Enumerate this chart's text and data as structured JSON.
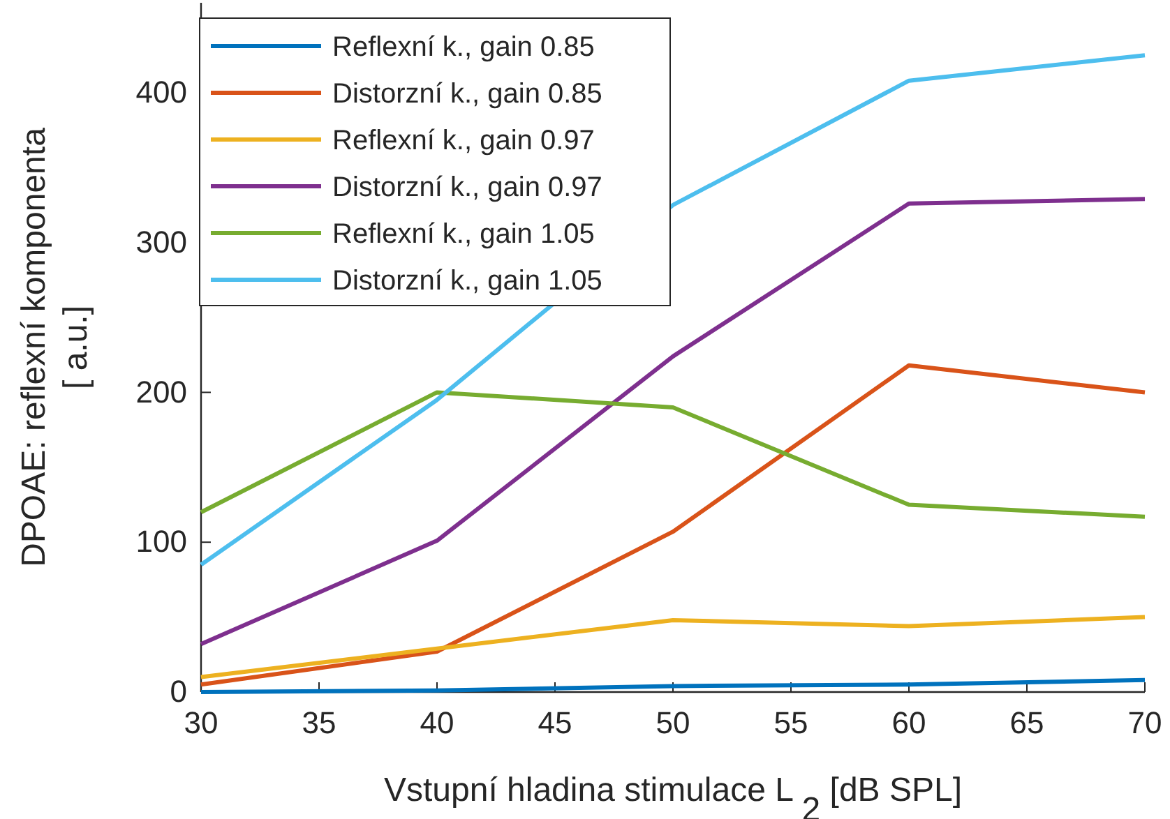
{
  "chart_data": {
    "type": "line",
    "xlabel": "Vstupní hladina stimulace L $_{2}$ [dB SPL]",
    "ylabel": "DPOAE: reflexní komponenta\n[ a.u.]",
    "x": [
      30,
      40,
      50,
      60,
      70
    ],
    "series": [
      {
        "name": "Reflexní k., gain 0.85",
        "color": "#0072bd",
        "values": [
          0,
          1,
          4,
          5,
          8
        ]
      },
      {
        "name": "Distorzní k., gain 0.85",
        "color": "#d95319",
        "values": [
          5,
          27,
          107,
          218,
          200
        ]
      },
      {
        "name": "Reflexní k., gain 0.97",
        "color": "#edb120",
        "values": [
          10,
          29,
          48,
          44,
          50
        ]
      },
      {
        "name": "Distorzní k., gain 0.97",
        "color": "#7e2f8e",
        "values": [
          32,
          101,
          224,
          326,
          329
        ]
      },
      {
        "name": "Reflexní k., gain 1.05",
        "color": "#77ac30",
        "values": [
          120,
          200,
          190,
          125,
          117
        ]
      },
      {
        "name": "Distorzní k., gain 1.05",
        "color": "#4dbeee",
        "values": [
          85,
          195,
          325,
          408,
          425
        ]
      }
    ],
    "xlim": [
      30,
      70
    ],
    "xticks": [
      30,
      35,
      40,
      45,
      50,
      55,
      60,
      65,
      70
    ],
    "ylim": [
      0,
      460
    ],
    "yticks": [
      0,
      100,
      200,
      300,
      400
    ],
    "grid": false,
    "legend": "top left",
    "marker": "none",
    "line_style": "solid"
  }
}
